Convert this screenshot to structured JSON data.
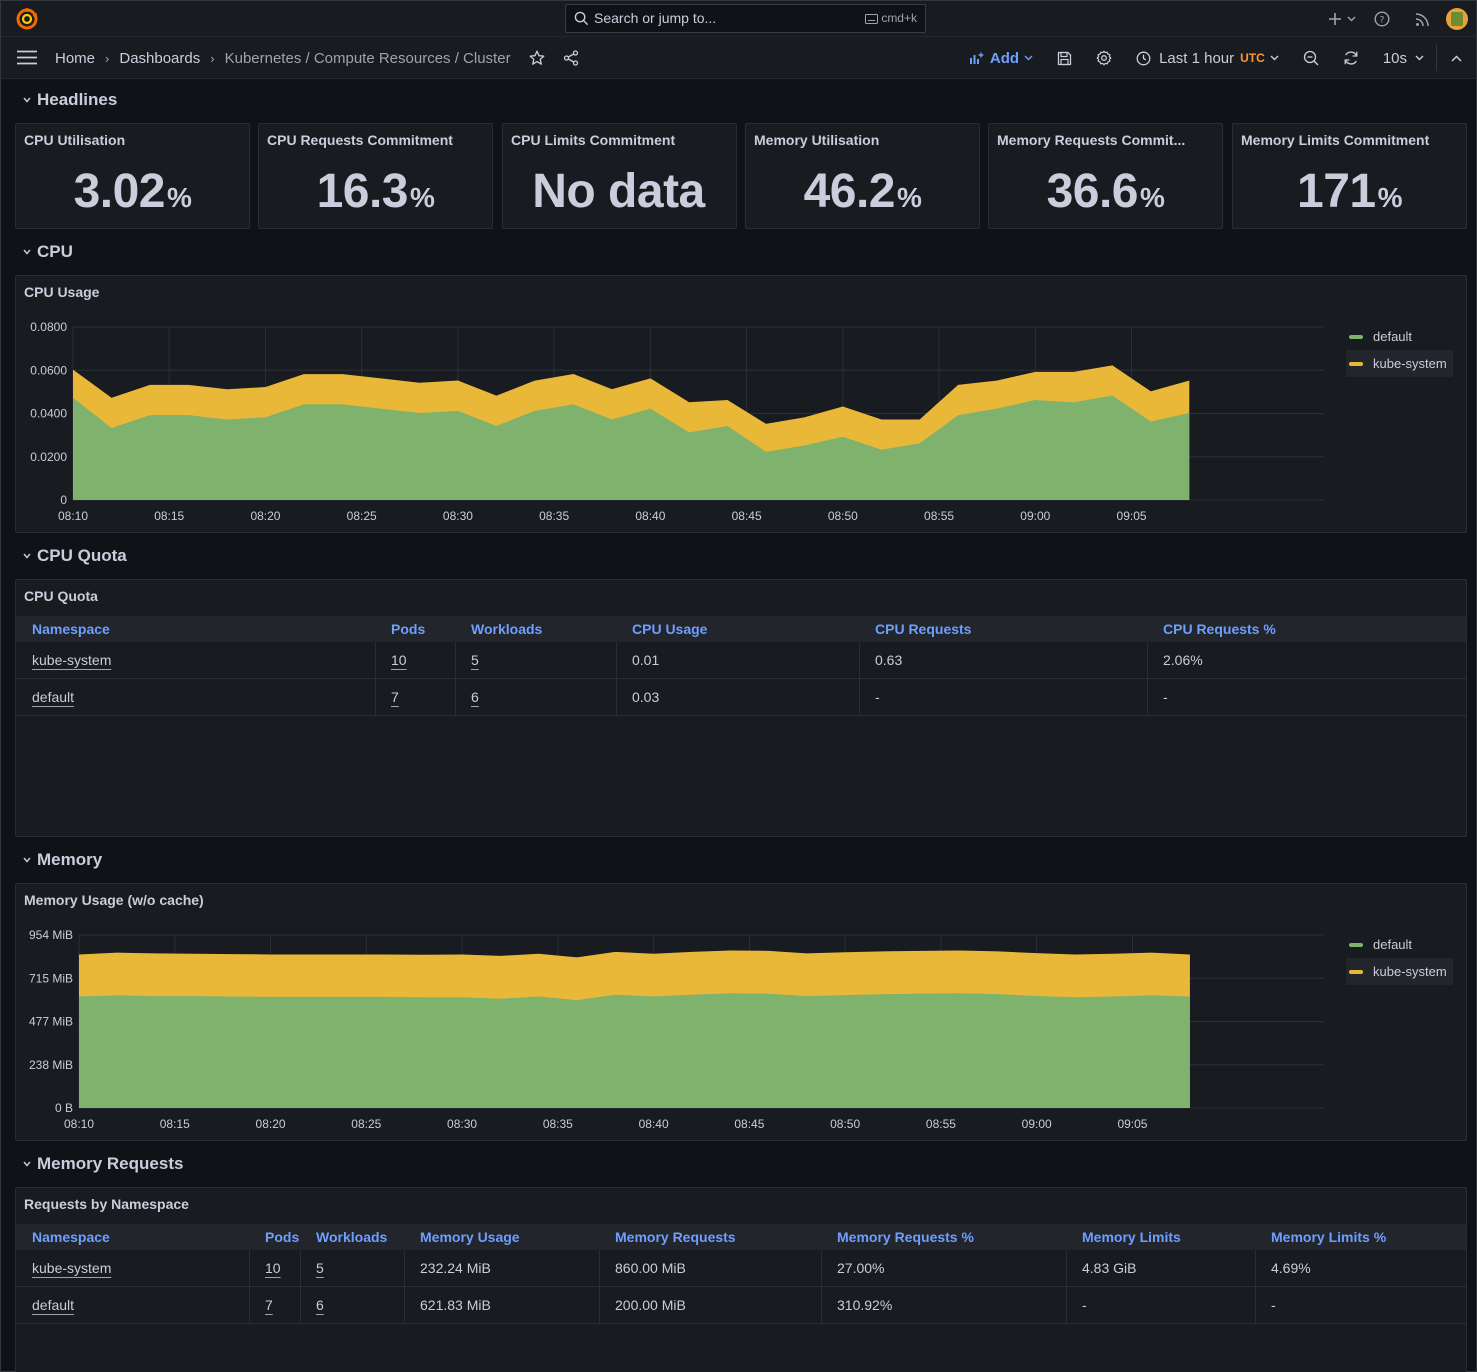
{
  "search": {
    "placeholder": "Search or jump to...",
    "shortcut": "cmd+k"
  },
  "breadcrumb": {
    "home": "Home",
    "dashboards": "Dashboards",
    "current": "Kubernetes / Compute Resources / Cluster"
  },
  "toolbar": {
    "add_label": "Add",
    "time_range": "Last 1 hour",
    "timezone": "UTC",
    "refresh_interval": "10s"
  },
  "rows": {
    "headlines": "Headlines",
    "cpu": "CPU",
    "cpu_quota": "CPU Quota",
    "memory": "Memory",
    "memory_requests": "Memory Requests"
  },
  "stats": [
    {
      "title": "CPU Utilisation",
      "value": "3.02",
      "unit": "%"
    },
    {
      "title": "CPU Requests Commitment",
      "value": "16.3",
      "unit": "%"
    },
    {
      "title": "CPU Limits Commitment",
      "value": "No data",
      "unit": ""
    },
    {
      "title": "Memory Utilisation",
      "value": "46.2",
      "unit": "%"
    },
    {
      "title": "Memory Requests Commit...",
      "value": "36.6",
      "unit": "%"
    },
    {
      "title": "Memory Limits Commitment",
      "value": "171",
      "unit": "%"
    }
  ],
  "colors": {
    "default": "#7eb26d",
    "kube_system": "#eab839",
    "header_link": "#6e9fff",
    "accent_orange": "#ff9830"
  },
  "cpu_chart": {
    "title": "CPU Usage",
    "legend": [
      "default",
      "kube-system"
    ],
    "chart_data": {
      "type": "area",
      "stacked": true,
      "x": [
        "08:10",
        "08:12",
        "08:14",
        "08:16",
        "08:18",
        "08:20",
        "08:22",
        "08:24",
        "08:26",
        "08:28",
        "08:30",
        "08:32",
        "08:34",
        "08:36",
        "08:38",
        "08:40",
        "08:42",
        "08:44",
        "08:46",
        "08:48",
        "08:50",
        "08:52",
        "08:54",
        "08:56",
        "08:58",
        "09:00",
        "09:02",
        "09:04",
        "09:06",
        "09:08"
      ],
      "xticks": [
        "08:10",
        "08:15",
        "08:20",
        "08:25",
        "08:30",
        "08:35",
        "08:40",
        "08:45",
        "08:50",
        "08:55",
        "09:00",
        "09:05"
      ],
      "yticks": [
        "0",
        "0.0200",
        "0.0400",
        "0.0600",
        "0.0800"
      ],
      "ylim": [
        0,
        0.08
      ],
      "series": [
        {
          "name": "default",
          "values": [
            0.047,
            0.033,
            0.039,
            0.039,
            0.037,
            0.038,
            0.044,
            0.044,
            0.042,
            0.04,
            0.041,
            0.034,
            0.041,
            0.044,
            0.037,
            0.042,
            0.031,
            0.034,
            0.022,
            0.025,
            0.029,
            0.023,
            0.026,
            0.039,
            0.042,
            0.046,
            0.045,
            0.048,
            0.036,
            0.04
          ]
        },
        {
          "name": "kube-system",
          "values": [
            0.013,
            0.014,
            0.014,
            0.014,
            0.014,
            0.014,
            0.014,
            0.014,
            0.014,
            0.014,
            0.014,
            0.014,
            0.014,
            0.014,
            0.014,
            0.014,
            0.014,
            0.012,
            0.013,
            0.013,
            0.014,
            0.014,
            0.011,
            0.014,
            0.013,
            0.013,
            0.014,
            0.014,
            0.014,
            0.015
          ]
        }
      ]
    }
  },
  "memory_chart": {
    "title": "Memory Usage (w/o cache)",
    "legend": [
      "default",
      "kube-system"
    ],
    "chart_data": {
      "type": "area",
      "stacked": true,
      "x": [
        "08:10",
        "08:12",
        "08:14",
        "08:16",
        "08:18",
        "08:20",
        "08:22",
        "08:24",
        "08:26",
        "08:28",
        "08:30",
        "08:32",
        "08:34",
        "08:36",
        "08:38",
        "08:40",
        "08:42",
        "08:44",
        "08:46",
        "08:48",
        "08:50",
        "08:52",
        "08:54",
        "08:56",
        "08:58",
        "09:00",
        "09:02",
        "09:04",
        "09:06",
        "09:08"
      ],
      "xticks": [
        "08:10",
        "08:15",
        "08:20",
        "08:25",
        "08:30",
        "08:35",
        "08:40",
        "08:45",
        "08:50",
        "08:55",
        "09:00",
        "09:05"
      ],
      "yticks": [
        "0 B",
        "238 MiB",
        "477 MiB",
        "715 MiB",
        "954 MiB"
      ],
      "ylim": [
        0,
        954
      ],
      "series": [
        {
          "name": "default",
          "values": [
            612,
            618,
            614,
            614,
            612,
            610,
            610,
            610,
            610,
            608,
            608,
            600,
            612,
            592,
            622,
            612,
            622,
            630,
            628,
            614,
            620,
            625,
            628,
            630,
            625,
            615,
            608,
            612,
            618,
            612
          ]
        },
        {
          "name": "kube-system",
          "values": [
            232,
            236,
            236,
            234,
            234,
            234,
            234,
            234,
            234,
            234,
            236,
            236,
            236,
            236,
            236,
            236,
            236,
            236,
            236,
            236,
            236,
            236,
            236,
            236,
            236,
            236,
            236,
            236,
            236,
            232
          ]
        }
      ]
    }
  },
  "cpu_quota_table": {
    "title": "CPU Quota",
    "columns": [
      "Namespace",
      "Pods",
      "Workloads",
      "CPU Usage",
      "CPU Requests",
      "CPU Requests %"
    ],
    "rows": [
      [
        "kube-system",
        "10",
        "5",
        "0.01",
        "0.63",
        "2.06%"
      ],
      [
        "default",
        "7",
        "6",
        "0.03",
        "-",
        "-"
      ]
    ]
  },
  "memory_requests_table": {
    "title": "Requests by Namespace",
    "columns": [
      "Namespace",
      "Pods",
      "Workloads",
      "Memory Usage",
      "Memory Requests",
      "Memory Requests %",
      "Memory Limits",
      "Memory Limits %"
    ],
    "rows": [
      [
        "kube-system",
        "10",
        "5",
        "232.24 MiB",
        "860.00 MiB",
        "27.00%",
        "4.83 GiB",
        "4.69%"
      ],
      [
        "default",
        "7",
        "6",
        "621.83 MiB",
        "200.00 MiB",
        "310.92%",
        "-",
        "-"
      ]
    ]
  }
}
